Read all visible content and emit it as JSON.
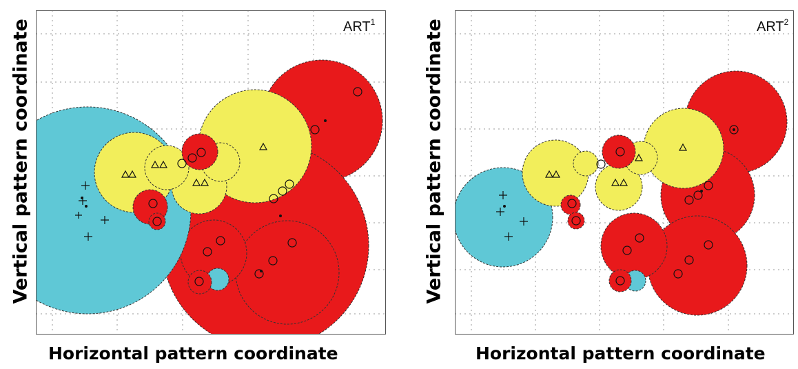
{
  "panels": [
    {
      "id": "left",
      "tag": "ART",
      "tag_superscript": "1",
      "ylabel": "Vertical pattern coordinate",
      "xlabel": "Horizontal pattern coordinate"
    },
    {
      "id": "right",
      "tag": "ART",
      "tag_superscript": "2",
      "ylabel": "Vertical pattern coordinate",
      "xlabel": "Horizontal pattern coordinate"
    }
  ],
  "colors": {
    "cyan": "#5fc8d6",
    "yellow": "#f2ee5b",
    "red": "#e8191b",
    "grid": "#9a9a9a",
    "frame": "#555555"
  }
}
